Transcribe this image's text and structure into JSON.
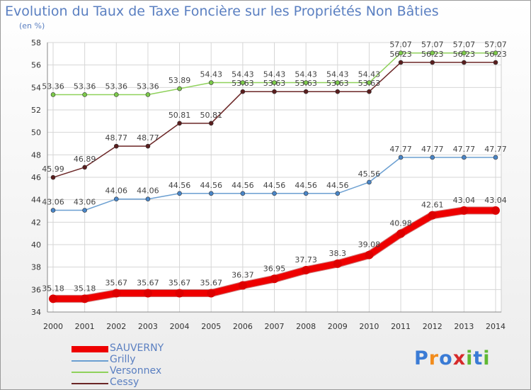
{
  "title": "Evolution du Taux de Taxe Foncière sur les Propriétés Non Bâties",
  "unit_label": "(en %)",
  "logo": {
    "text": "Proxiti",
    "letters": [
      {
        "ch": "P",
        "color": "#3a7bd5"
      },
      {
        "ch": "r",
        "color": "#f28c1c"
      },
      {
        "ch": "o",
        "color": "#3a7bd5"
      },
      {
        "ch": "x",
        "color": "#d62a2a"
      },
      {
        "ch": "i",
        "color": "#5fb832"
      },
      {
        "ch": "t",
        "color": "#3a7bd5"
      },
      {
        "ch": "i",
        "color": "#5fb832"
      }
    ]
  },
  "chart_data": {
    "type": "line",
    "title": "Evolution du Taux de Taxe Foncière sur les Propriétés Non Bâties",
    "ylabel": "(en %)",
    "xlabel": "",
    "ylim": [
      34,
      58
    ],
    "yticks": [
      34,
      36,
      38,
      40,
      42,
      44,
      46,
      48,
      50,
      52,
      54,
      56,
      58
    ],
    "grid": true,
    "legend_position": "bottom-left",
    "x": [
      "2000",
      "2001",
      "2002",
      "2003",
      "2004",
      "2005",
      "2006",
      "2007",
      "2008",
      "2009",
      "2010",
      "2011",
      "2012",
      "2013",
      "2014"
    ],
    "series": [
      {
        "name": "Versonnex",
        "color": "#8fd15b",
        "marker": "#7cc94a",
        "width": 1.5,
        "markerSize": 3,
        "values": [
          53.36,
          53.36,
          53.36,
          53.36,
          53.89,
          54.43,
          54.43,
          54.43,
          54.43,
          54.43,
          54.43,
          57.07,
          57.07,
          57.07,
          57.07
        ],
        "labels": [
          "53.36",
          "53.36",
          "53.36",
          "53.36",
          "53.89",
          "54.43",
          "54.43",
          "54.43",
          "54.43",
          "54.43",
          "54.43",
          "57.07",
          "57.07",
          "57.07",
          "57.07"
        ]
      },
      {
        "name": "Cessy",
        "color": "#6b2626",
        "marker": "#5a1e1e",
        "width": 1.5,
        "markerSize": 3,
        "values": [
          45.99,
          46.89,
          48.77,
          48.77,
          50.81,
          50.81,
          53.63,
          53.63,
          53.63,
          53.63,
          53.63,
          56.23,
          56.23,
          56.23,
          56.23
        ],
        "labels": [
          "45.99",
          "46.89",
          "48.77",
          "48.77",
          "50.81",
          "50.81",
          "53.63",
          "53.63",
          "53.63",
          "53.63",
          "53.63",
          "56.23",
          "56.23",
          "56.23",
          "56.23"
        ]
      },
      {
        "name": "Grilly",
        "color": "#6b9fd1",
        "marker": "#4a86c8",
        "width": 1.5,
        "markerSize": 3,
        "values": [
          43.06,
          43.06,
          44.06,
          44.06,
          44.56,
          44.56,
          44.56,
          44.56,
          44.56,
          44.56,
          45.56,
          47.77,
          47.77,
          47.77,
          47.77
        ],
        "labels": [
          "43.06",
          "43.06",
          "44.06",
          "44.06",
          "44.56",
          "44.56",
          "44.56",
          "44.56",
          "44.56",
          "44.56",
          "45.56",
          "47.77",
          "47.77",
          "47.77",
          "47.77"
        ]
      },
      {
        "name": "SAUVERNY",
        "color": "#ee0000",
        "marker": "#dd0000",
        "width": 9,
        "markerSize": 6,
        "values": [
          35.18,
          35.18,
          35.67,
          35.67,
          35.67,
          35.67,
          36.37,
          36.95,
          37.73,
          38.3,
          39.08,
          40.98,
          42.61,
          43.04,
          43.04
        ],
        "labels": [
          "35.18",
          "35.18",
          "35.67",
          "35.67",
          "35.67",
          "35.67",
          "36.37",
          "36.95",
          "37.73",
          "38.3",
          "39.08",
          "40.98",
          "42.61",
          "43.04",
          "43.04"
        ]
      }
    ],
    "legend": [
      {
        "name": "SAUVERNY",
        "color": "#ee0000"
      },
      {
        "name": "Grilly",
        "color": "#6b9fd1"
      },
      {
        "name": "Versonnex",
        "color": "#8fd15b"
      },
      {
        "name": "Cessy",
        "color": "#6b2626"
      }
    ]
  }
}
